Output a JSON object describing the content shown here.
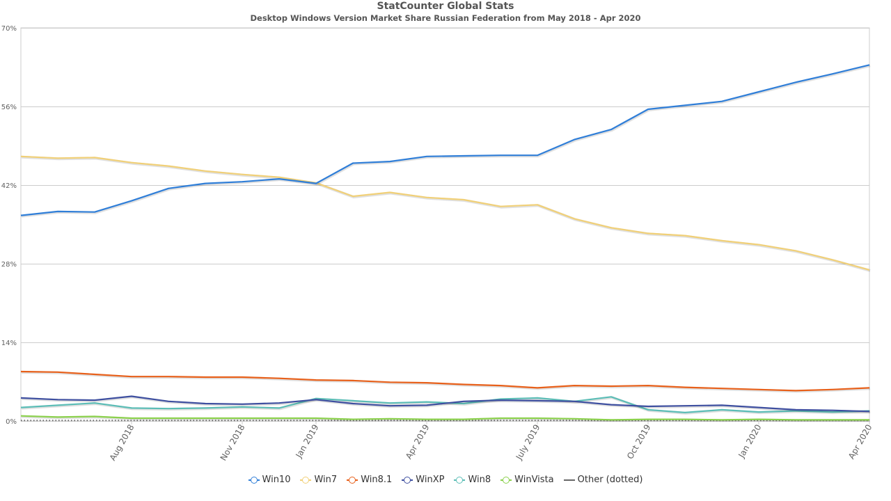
{
  "chart_data": {
    "type": "line",
    "title": "StatCounter Global Stats",
    "subtitle": "Desktop Windows Version Market Share Russian Federation from May 2018 - Apr 2020",
    "x": [
      "May 2018",
      "Jun 2018",
      "Jul 2018",
      "Aug 2018",
      "Sep 2018",
      "Oct 2018",
      "Nov 2018",
      "Dec 2018",
      "Jan 2019",
      "Feb 2019",
      "Mar 2019",
      "Apr 2019",
      "May 2019",
      "Jun 2019",
      "Jul 2019",
      "Aug 2019",
      "Sep 2019",
      "Oct 2019",
      "Nov 2019",
      "Dec 2019",
      "Jan 2020",
      "Feb 2020",
      "Mar 2020",
      "Apr 2020"
    ],
    "x_tick_labels": [
      {
        "index": 3,
        "label": "Aug 2018"
      },
      {
        "index": 6,
        "label": "Nov 2018"
      },
      {
        "index": 8,
        "label": "Jan 2019"
      },
      {
        "index": 11,
        "label": "Apr 2019"
      },
      {
        "index": 14,
        "label": "July 2019"
      },
      {
        "index": 17,
        "label": "Oct 2019"
      },
      {
        "index": 20,
        "label": "Jan 2020"
      },
      {
        "index": 23,
        "label": "Apr 2020"
      }
    ],
    "y_tick_labels": [
      "0%",
      "14%",
      "28%",
      "42%",
      "56%",
      "70%"
    ],
    "ylim": [
      0,
      70
    ],
    "grid": true,
    "legend_position": "bottom",
    "series": [
      {
        "name": "Win10",
        "color": "#2f7ed8",
        "values": [
          36.6,
          37.3,
          37.2,
          39.2,
          41.4,
          42.3,
          42.6,
          43.1,
          42.3,
          45.9,
          46.2,
          47.1,
          47.2,
          47.3,
          47.3,
          50.1,
          51.9,
          55.5,
          56.2,
          56.9,
          58.6,
          60.3,
          61.8,
          63.4
        ]
      },
      {
        "name": "Win7",
        "color": "#f1d077",
        "values": [
          47.1,
          46.8,
          46.9,
          46.0,
          45.4,
          44.5,
          43.9,
          43.4,
          42.4,
          40.0,
          40.7,
          39.8,
          39.4,
          38.2,
          38.5,
          36.0,
          34.4,
          33.4,
          33.0,
          32.1,
          31.4,
          30.3,
          28.7,
          26.9
        ]
      },
      {
        "name": "Win8.1",
        "color": "#e8601a",
        "values": [
          8.8,
          8.7,
          8.3,
          7.9,
          7.9,
          7.8,
          7.8,
          7.6,
          7.3,
          7.2,
          6.9,
          6.8,
          6.5,
          6.3,
          5.9,
          6.3,
          6.2,
          6.3,
          6.0,
          5.8,
          5.6,
          5.4,
          5.6,
          5.9
        ]
      },
      {
        "name": "WinXP",
        "color": "#3e4fa0",
        "values": [
          4.1,
          3.8,
          3.7,
          4.4,
          3.5,
          3.1,
          3.0,
          3.2,
          3.8,
          3.1,
          2.7,
          2.8,
          3.5,
          3.7,
          3.6,
          3.5,
          2.9,
          2.6,
          2.7,
          2.8,
          2.4,
          2.0,
          1.9,
          1.7
        ]
      },
      {
        "name": "Win8",
        "color": "#5bbdb6",
        "values": [
          2.4,
          2.8,
          3.2,
          2.3,
          2.2,
          2.3,
          2.5,
          2.3,
          4.0,
          3.6,
          3.2,
          3.4,
          3.1,
          3.9,
          4.1,
          3.5,
          4.3,
          2.0,
          1.5,
          2.0,
          1.6,
          1.8,
          1.6,
          1.8
        ]
      },
      {
        "name": "WinVista",
        "color": "#8bd14c",
        "values": [
          0.9,
          0.7,
          0.8,
          0.5,
          0.5,
          0.5,
          0.5,
          0.5,
          0.5,
          0.3,
          0.4,
          0.3,
          0.3,
          0.5,
          0.5,
          0.4,
          0.2,
          0.3,
          0.3,
          0.2,
          0.3,
          0.2,
          0.2,
          0.2
        ]
      },
      {
        "name": "Other (dotted)",
        "color": "#666666",
        "dotted": true,
        "values": [
          0.1,
          0.1,
          0.1,
          0.1,
          0.1,
          0.1,
          0.1,
          0.1,
          0.1,
          0.1,
          0.1,
          0.1,
          0.1,
          0.1,
          0.1,
          0.1,
          0.1,
          0.1,
          0.1,
          0.1,
          0.1,
          0.1,
          0.1,
          0.1
        ]
      }
    ]
  }
}
